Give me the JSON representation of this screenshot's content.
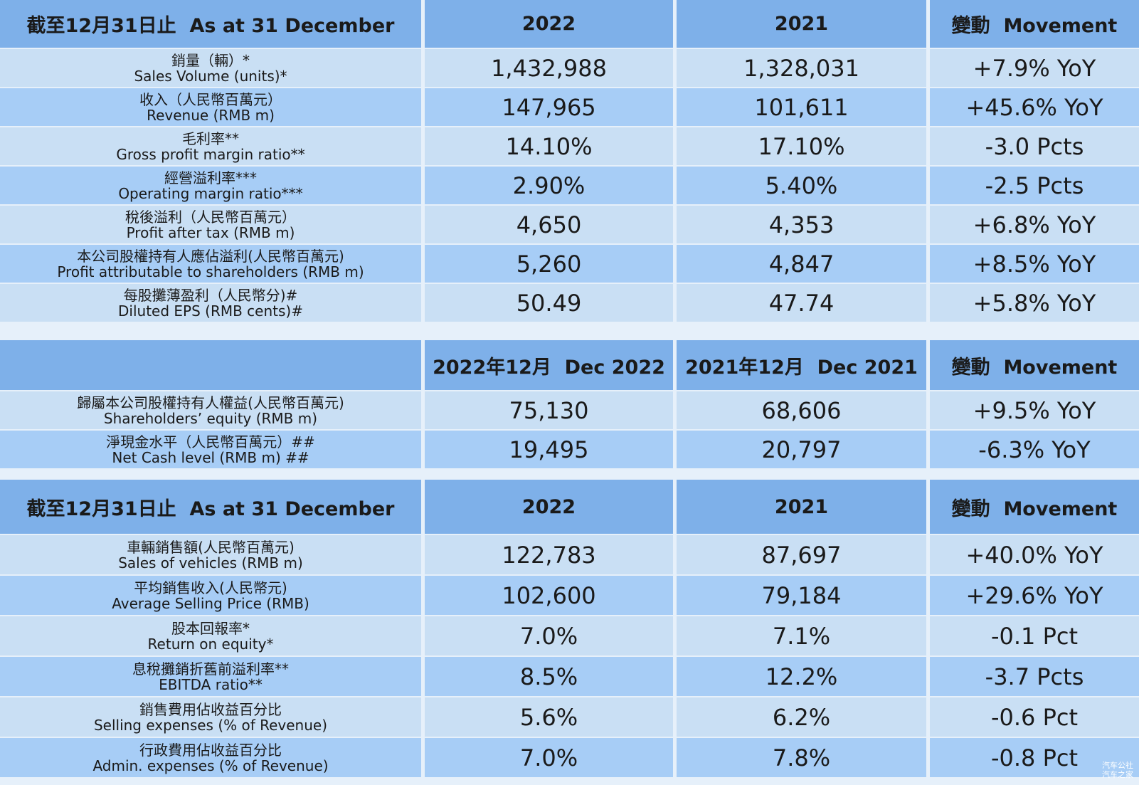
{
  "tables": [
    {
      "header": [
        "截至12月31日止  As at 31 December",
        "2022",
        "2021",
        "變動  Movement"
      ],
      "rows": [
        [
          "銷量（輛）*",
          "Sales Volume (units)*",
          "1,432,988",
          "1,328,031",
          "+7.9% YoY"
        ],
        [
          "收入（人民幣百萬元）",
          "Revenue (RMB m)",
          "147,965",
          "101,611",
          "+45.6% YoY"
        ],
        [
          "毛利率**",
          "Gross profit margin ratio**",
          "14.10%",
          "17.10%",
          "-3.0 Pcts"
        ],
        [
          "經營溢利率***",
          "Operating margin ratio***",
          "2.90%",
          "5.40%",
          "-2.5 Pcts"
        ],
        [
          "稅後溢利（人民幣百萬元）",
          "Profit after tax (RMB m)",
          "4,650",
          "4,353",
          "+6.8% YoY"
        ],
        [
          "本公司股權持有人應佔溢利(人民幣百萬元)",
          "Profit attributable to shareholders (RMB m)",
          "5,260",
          "4,847",
          "+8.5% YoY"
        ],
        [
          "每股攤薄盈利（人民幣分)#",
          "Diluted EPS (RMB cents)#",
          "50.49",
          "47.74",
          "+5.8% YoY"
        ]
      ]
    },
    {
      "header": [
        "2022年12月  Dec 2022",
        "2021年12月  Dec 2021",
        "變動  Movement"
      ],
      "rows": [
        [
          "歸屬本公司股權持有人權益(人民幣百萬元)",
          "Shareholders’ equity (RMB m)",
          "75,130",
          "68,606",
          "+9.5% YoY"
        ],
        [
          "淨現金水平（人民幣百萬元）##",
          "Net Cash level (RMB m) ##",
          "19,495",
          "20,797",
          "-6.3% YoY"
        ]
      ]
    },
    {
      "header": [
        "截至12月31日止  As at 31 December",
        "2022",
        "2021",
        "變動  Movement"
      ],
      "rows": [
        [
          "車輛銷售額(人民幣百萬元)",
          "Sales of vehicles (RMB m)",
          "122,783",
          "87,697",
          "+40.0% YoY"
        ],
        [
          "平均銷售收入(人民幣元)",
          "Average Selling Price (RMB)",
          "102,600",
          "79,184",
          "+29.6% YoY"
        ],
        [
          "股本回報率*",
          "Return on equity*",
          "7.0%",
          "7.1%",
          "-0.1 Pct"
        ],
        [
          "息稅攤銷折舊前溢利率**",
          "EBITDA ratio**",
          "8.5%",
          "12.2%",
          "-3.7 Pcts"
        ],
        [
          "銷售費用佔收益百分比",
          "Selling expenses (% of Revenue)",
          "5.6%",
          "6.2%",
          "-0.6 Pct"
        ],
        [
          "行政費用佔收益百分比",
          "Admin. expenses (% of Revenue)",
          "7.0%",
          "7.8%",
          "-0.8 Pct"
        ]
      ]
    }
  ],
  "watermark": [
    "汽车公社",
    "汽车之家"
  ]
}
